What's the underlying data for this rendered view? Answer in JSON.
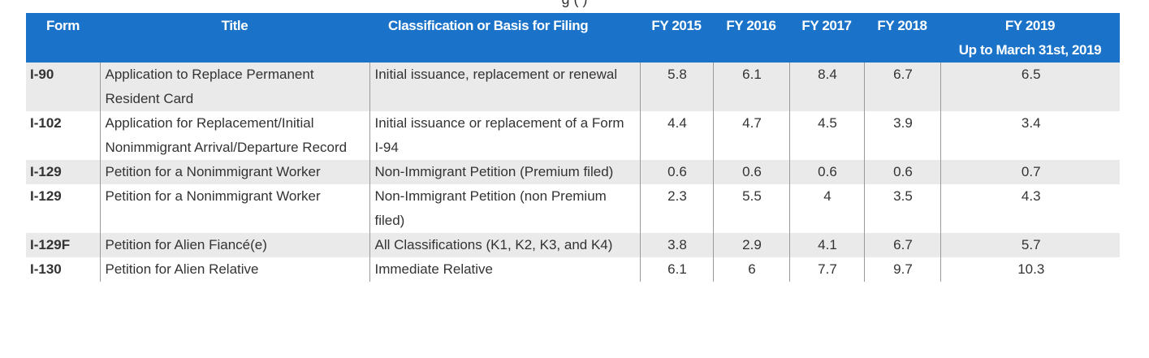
{
  "caption_fragment": "g   (   )",
  "table": {
    "headers": {
      "form": "Form",
      "title": "Title",
      "classification": "Classification or Basis for Filing",
      "fy2015": "FY 2015",
      "fy2016": "FY 2016",
      "fy2017": "FY 2017",
      "fy2018": "FY 2018",
      "fy2019": "FY 2019",
      "fy2019_sub": "Up to March 31st, 2019"
    },
    "rows": [
      {
        "form": "I-90",
        "title": "Application to Replace Permanent Resident Card",
        "classification": "Initial issuance, replacement or renewal",
        "fy2015": "5.8",
        "fy2016": "6.1",
        "fy2017": "8.4",
        "fy2018": "6.7",
        "fy2019": "6.5"
      },
      {
        "form": "I-102",
        "title": "Application for Replacement/Initial Nonimmigrant Arrival/Departure Record",
        "classification": "Initial issuance or replacement of a Form I-94",
        "fy2015": "4.4",
        "fy2016": "4.7",
        "fy2017": "4.5",
        "fy2018": "3.9",
        "fy2019": "3.4"
      },
      {
        "form": "I-129",
        "title": "Petition for a Nonimmigrant Worker",
        "classification": "Non-Immigrant Petition (Premium filed)",
        "fy2015": "0.6",
        "fy2016": "0.6",
        "fy2017": "0.6",
        "fy2018": "0.6",
        "fy2019": "0.7"
      },
      {
        "form": "I-129",
        "title": "Petition for a Nonimmigrant Worker",
        "classification": "Non-Immigrant Petition (non Premium filed)",
        "fy2015": "2.3",
        "fy2016": "5.5",
        "fy2017": "4",
        "fy2018": "3.5",
        "fy2019": "4.3"
      },
      {
        "form": "I-129F",
        "title": "Petition for Alien Fiancé(e)",
        "classification": "All Classifications (K1, K2, K3, and K4)",
        "fy2015": "3.8",
        "fy2016": "2.9",
        "fy2017": "4.1",
        "fy2018": "6.7",
        "fy2019": "5.7"
      },
      {
        "form": "I-130",
        "title": "Petition for Alien Relative",
        "classification": "Immediate Relative",
        "fy2015": "6.1",
        "fy2016": "6",
        "fy2017": "7.7",
        "fy2018": "9.7",
        "fy2019": "10.3"
      }
    ]
  }
}
